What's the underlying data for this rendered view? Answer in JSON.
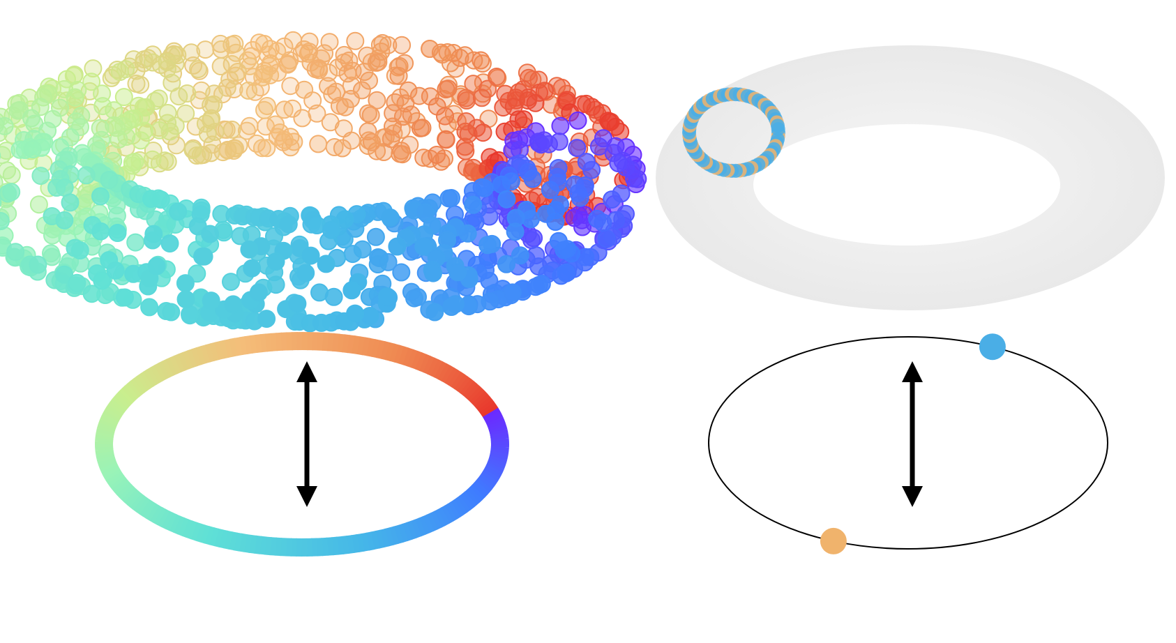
{
  "panels": [
    {
      "id": "left",
      "torus": {
        "style": "point-cloud",
        "point_count": 1100,
        "colormap": [
          "#6a2bff",
          "#3f7cff",
          "#45b7e8",
          "#5fe0d6",
          "#98f3b8",
          "#c9ee8e",
          "#f4bd79",
          "#ef8a52",
          "#e8352b"
        ]
      },
      "circle": {
        "style": "colormap-gradient-ring",
        "colormap": [
          "#6a2bff",
          "#3f7cff",
          "#45b7e8",
          "#5fe0d6",
          "#98f3b8",
          "#c9ee8e",
          "#f4bd79",
          "#ef8a52",
          "#e8352b"
        ]
      },
      "arrow": {
        "type": "double-headed",
        "color": "#000000"
      }
    },
    {
      "id": "right",
      "torus": {
        "style": "light-gray-surface",
        "color": "#ececec",
        "meridian_loop": {
          "colors": [
            "#4aaee6",
            "#f0b36c"
          ],
          "point_count": 70
        }
      },
      "circle": {
        "style": "thin-black-outline",
        "markers": [
          {
            "color": "#4aaee6",
            "angle_deg": -65
          },
          {
            "color": "#f0b36c",
            "angle_deg": 112
          }
        ]
      },
      "arrow": {
        "type": "double-headed",
        "color": "#000000"
      }
    }
  ]
}
